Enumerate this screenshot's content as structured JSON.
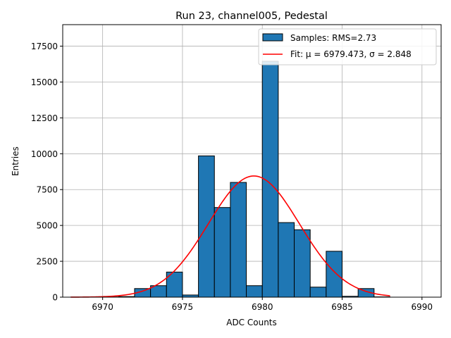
{
  "chart_data": {
    "type": "bar",
    "title": "Run 23, channel005, Pedestal",
    "xlabel": "ADC Counts",
    "ylabel": "Entries",
    "xlim": [
      6967.5,
      6991.2
    ],
    "ylim": [
      0,
      19000
    ],
    "xticks": [
      6970,
      6975,
      6980,
      6985,
      6990
    ],
    "yticks": [
      0,
      2500,
      5000,
      7500,
      10000,
      12500,
      15000,
      17500
    ],
    "grid": true,
    "legend_position": "top-right",
    "bin_width": 1,
    "series": [
      {
        "name": "Samples: RMS=2.73",
        "kind": "histogram",
        "color": "#1f77b4",
        "edge_color": "#000000",
        "bin_starts": [
          6968,
          6969,
          6970,
          6971,
          6972,
          6973,
          6974,
          6975,
          6976,
          6977,
          6978,
          6979,
          6980,
          6981,
          6982,
          6983,
          6984,
          6985,
          6986,
          6987
        ],
        "values": [
          0,
          0,
          15,
          40,
          600,
          800,
          1750,
          150,
          9850,
          6250,
          8000,
          800,
          16450,
          5200,
          4700,
          700,
          3200,
          60,
          600,
          20
        ]
      },
      {
        "name": "Fit: μ = 6979.473, σ = 2.848",
        "kind": "gaussian-fit",
        "color": "#ff0000",
        "mu": 6979.473,
        "sigma": 2.848,
        "amplitude": 8450,
        "x_range": [
          6968,
          6988
        ]
      }
    ]
  }
}
